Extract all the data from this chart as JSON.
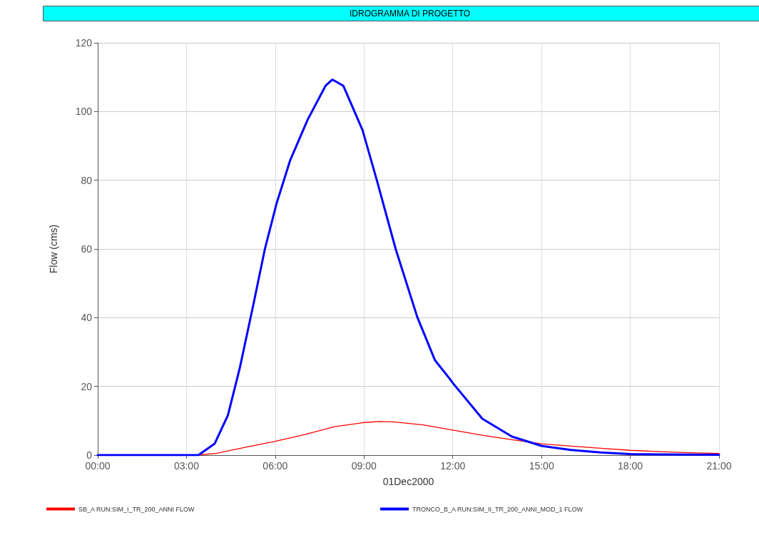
{
  "chart_data": {
    "type": "line",
    "title": "IDROGRAMMA DI PROGETTO",
    "xlabel": "01Dec2000",
    "ylabel": "Flow (cms)",
    "xlim": [
      0,
      21
    ],
    "xticks": [
      {
        "value": 0,
        "label": "00:00"
      },
      {
        "value": 3,
        "label": "03:00"
      },
      {
        "value": 6,
        "label": "06:00"
      },
      {
        "value": 9,
        "label": "09:00"
      },
      {
        "value": 12,
        "label": "12:00"
      },
      {
        "value": 15,
        "label": "15:00"
      },
      {
        "value": 18,
        "label": "18:00"
      },
      {
        "value": 21,
        "label": "21:00"
      }
    ],
    "ylim": [
      0,
      120
    ],
    "yticks": [
      0,
      20,
      40,
      60,
      80,
      100,
      120
    ],
    "grid": true,
    "legend": "bottom",
    "marker": "none",
    "line_style": "solid",
    "series": [
      {
        "name": "SB_A RUN:SIM_I_TR_200_ANNI FLOW",
        "color": "#ff0000",
        "x": [
          0,
          3,
          3.3,
          4,
          5,
          6,
          7,
          8,
          9,
          9.5,
          10,
          11,
          12,
          13,
          14,
          15,
          16,
          17,
          18,
          19,
          20,
          21
        ],
        "values": [
          0,
          0,
          0,
          0.5,
          2.3,
          4,
          6,
          8.3,
          9.5,
          9.8,
          9.7,
          8.8,
          7.3,
          5.8,
          4.5,
          3.3,
          2.6,
          2,
          1.4,
          1,
          0.7,
          0.5
        ]
      },
      {
        "name": "TRONCO_B_A RUN:SIM_II_TR_200_ANNI_MOD_1 FLOW",
        "color": "#0000ff",
        "x": [
          0,
          3,
          3.4,
          3.95,
          4.4,
          4.8,
          5.25,
          5.65,
          6.05,
          6.5,
          7.1,
          7.7,
          7.93,
          8.3,
          8.95,
          9.45,
          10.07,
          10.8,
          11.4,
          11.9,
          12,
          13,
          14,
          15,
          16,
          17,
          18,
          19,
          21
        ],
        "values": [
          0,
          0,
          0,
          3.3,
          11.6,
          25.3,
          43.4,
          60,
          73.4,
          85.7,
          97.7,
          107.5,
          109.3,
          107.5,
          94.6,
          79.5,
          60,
          40.2,
          27.6,
          22.2,
          21,
          10.6,
          5.4,
          2.7,
          1.5,
          0.8,
          0.3,
          0.2,
          0.1
        ]
      }
    ]
  }
}
